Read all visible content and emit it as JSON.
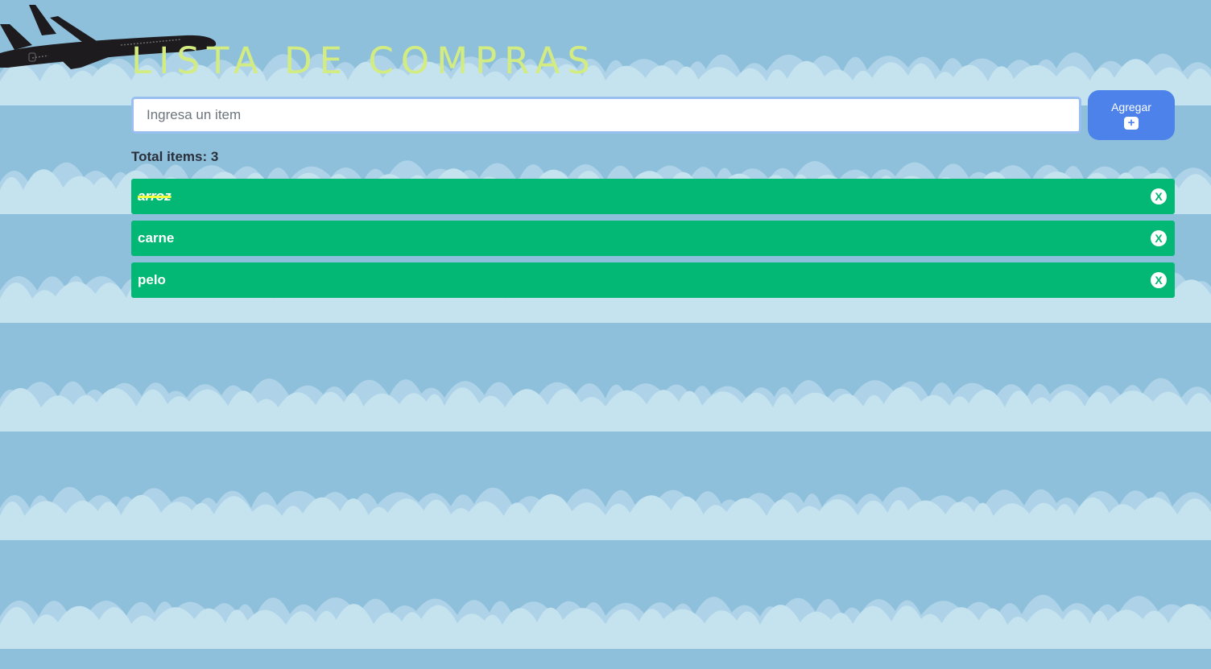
{
  "header": {
    "title": "LISTA DE COMPRAS"
  },
  "form": {
    "input_placeholder": "Ingresa un item",
    "input_value": "",
    "add_label": "Agregar",
    "add_icon": "+"
  },
  "summary": {
    "total_label": "Total items:",
    "total_count": "3"
  },
  "list": {
    "items": [
      {
        "text": "arroz",
        "completed": true,
        "delete_glyph": "X"
      },
      {
        "text": "carne",
        "completed": false,
        "delete_glyph": "X"
      },
      {
        "text": "pelo",
        "completed": false,
        "delete_glyph": "X"
      }
    ]
  },
  "colors": {
    "sky": "#8ec0dc",
    "title": "#d3ec82",
    "item_background": "#02b874",
    "add_button": "#4c82ea",
    "strike": "#f3ff3a"
  },
  "icons": {
    "background": "clouds-illustration",
    "decoration": "airplane-silhouette",
    "add": "plus-icon",
    "delete": "close-icon"
  }
}
